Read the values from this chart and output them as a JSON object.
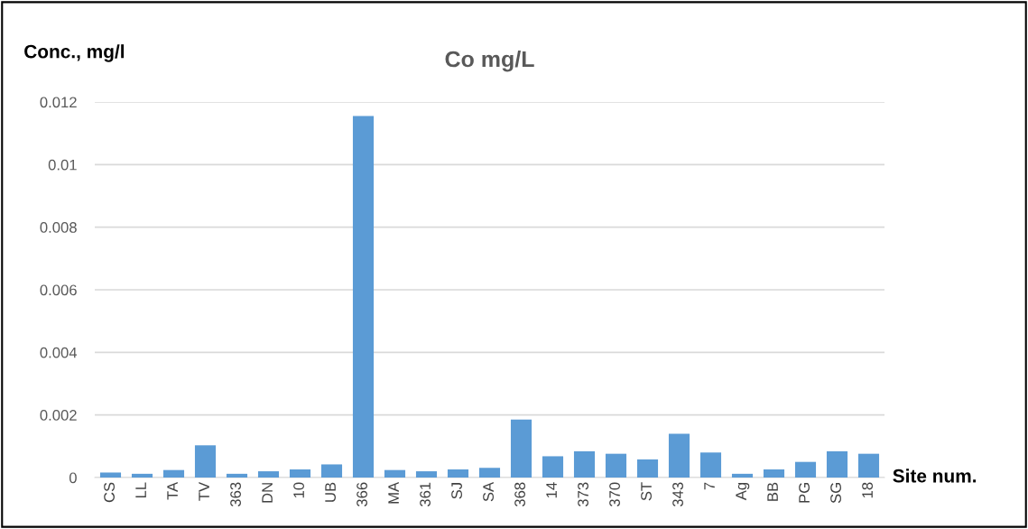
{
  "chart_data": {
    "type": "bar",
    "title": "Co mg/L",
    "xlabel": "Site num.",
    "ylabel": "Conc., mg/l",
    "categories": [
      "CS",
      "LL",
      "TA",
      "TV",
      "363",
      "DN",
      "10",
      "UB",
      "366",
      "MA",
      "361",
      "SJ",
      "SA",
      "368",
      "14",
      "373",
      "370",
      "ST",
      "343",
      "7",
      "Ag",
      "BB",
      "PG",
      "SG",
      "18"
    ],
    "values": [
      0.00016,
      0.00012,
      0.00024,
      0.00103,
      0.00012,
      0.0002,
      0.00026,
      0.00042,
      0.01155,
      0.00024,
      0.0002,
      0.00026,
      0.00031,
      0.00185,
      0.00068,
      0.00084,
      0.00076,
      0.00058,
      0.0014,
      0.0008,
      0.00012,
      0.00026,
      0.0005,
      0.00084,
      0.00076
    ],
    "color": "#5b9bd5",
    "ylim": [
      0,
      0.012
    ],
    "yticks": [
      0,
      0.002,
      0.004,
      0.006,
      0.008,
      0.01,
      0.012
    ],
    "grid": "y",
    "legend": false
  }
}
